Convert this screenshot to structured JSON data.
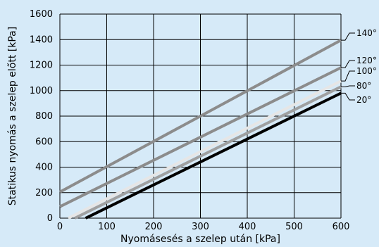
{
  "chart_data": {
    "type": "line",
    "title": "",
    "xlabel": "Nyomásesés a szelep után [kPa]",
    "ylabel": "Statikus nyomás a szelep előtt [kPa]",
    "xlim": [
      0,
      600
    ],
    "ylim": [
      0,
      1600
    ],
    "x_ticks": [
      0,
      100,
      200,
      300,
      400,
      500,
      600
    ],
    "y_ticks": [
      0,
      200,
      400,
      600,
      800,
      1000,
      1200,
      1400,
      1600
    ],
    "x_tick_labels": [
      "0",
      "100",
      "200",
      "300",
      "400",
      "500",
      "600"
    ],
    "y_tick_labels": [
      "0",
      "200",
      "400",
      "600",
      "800",
      "1000",
      "1200",
      "1400",
      "1600"
    ],
    "grid": true,
    "series": [
      {
        "name": "140°",
        "color": "#8c8c8c",
        "x": [
          0,
          600
        ],
        "y": [
          205,
          1395
        ]
      },
      {
        "name": "120°",
        "color": "#8c8c8c",
        "x": [
          0,
          600
        ],
        "y": [
          90,
          1180
        ]
      },
      {
        "name": "100°",
        "color": "#e6e6e6",
        "x": [
          18,
          600
        ],
        "y": [
          0,
          1075
        ]
      },
      {
        "name": "80°",
        "color": "#a0a0a0",
        "x": [
          32,
          600
        ],
        "y": [
          0,
          1030
        ]
      },
      {
        "name": "20°",
        "color": "#000000",
        "x": [
          55,
          600
        ],
        "y": [
          0,
          980
        ]
      }
    ]
  }
}
